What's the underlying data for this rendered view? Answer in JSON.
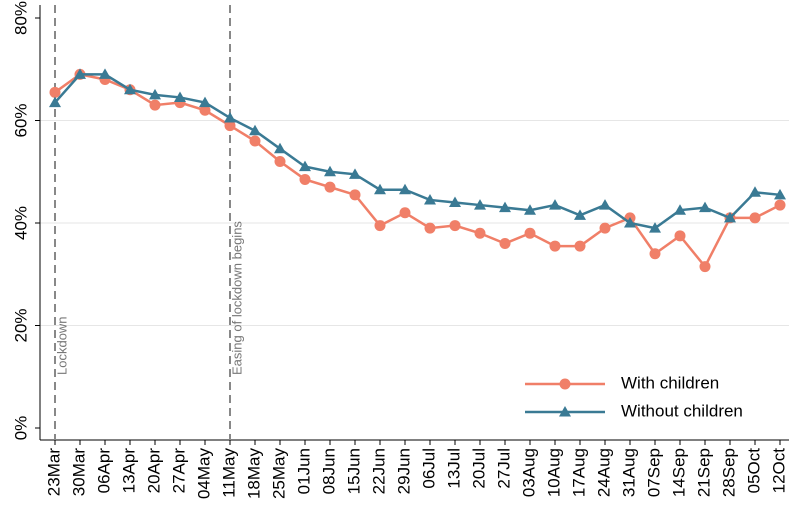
{
  "chart_data": {
    "type": "line",
    "categories": [
      "23Mar",
      "30Mar",
      "06Apr",
      "13Apr",
      "20Apr",
      "27Apr",
      "04May",
      "11May",
      "18May",
      "25May",
      "01Jun",
      "08Jun",
      "15Jun",
      "22Jun",
      "29Jun",
      "06Jul",
      "13Jul",
      "20Jul",
      "27Jul",
      "03Aug",
      "10Aug",
      "17Aug",
      "24Aug",
      "31Aug",
      "07Sep",
      "14Sep",
      "21Sep",
      "28Sep",
      "05Oct",
      "12Oct"
    ],
    "series": [
      {
        "name": "With children",
        "color": "#f07f68",
        "marker": "circle",
        "values": [
          65.5,
          69,
          68,
          66,
          63,
          63.5,
          62,
          59,
          56,
          52,
          48.5,
          47,
          45.5,
          39.5,
          42,
          39,
          39.5,
          38,
          36,
          38,
          35.5,
          35.5,
          39,
          41,
          34,
          37.5,
          31.5,
          41,
          41,
          43.5
        ]
      },
      {
        "name": "Without children",
        "color": "#3a7a94",
        "marker": "triangle",
        "values": [
          63.5,
          69,
          69,
          66,
          65,
          64.5,
          63.5,
          60.5,
          58,
          54.5,
          51,
          50,
          49.5,
          46.5,
          46.5,
          44.5,
          44,
          43.5,
          43,
          42.5,
          43.5,
          41.5,
          43.5,
          40,
          39,
          42.5,
          43,
          41,
          46,
          45.5
        ]
      }
    ],
    "ylim": [
      0,
      80
    ],
    "yticks": [
      {
        "value": 0,
        "label": "0%"
      },
      {
        "value": 20,
        "label": "20%"
      },
      {
        "value": 40,
        "label": "40%"
      },
      {
        "value": 60,
        "label": "60%"
      },
      {
        "value": 80,
        "label": "80%"
      }
    ],
    "grid": true,
    "legend": "bottom-right",
    "annotations": [
      {
        "text": "Lockdown",
        "x": "23Mar"
      },
      {
        "text": "Easing of lockdown begins",
        "x": "11May"
      }
    ]
  }
}
